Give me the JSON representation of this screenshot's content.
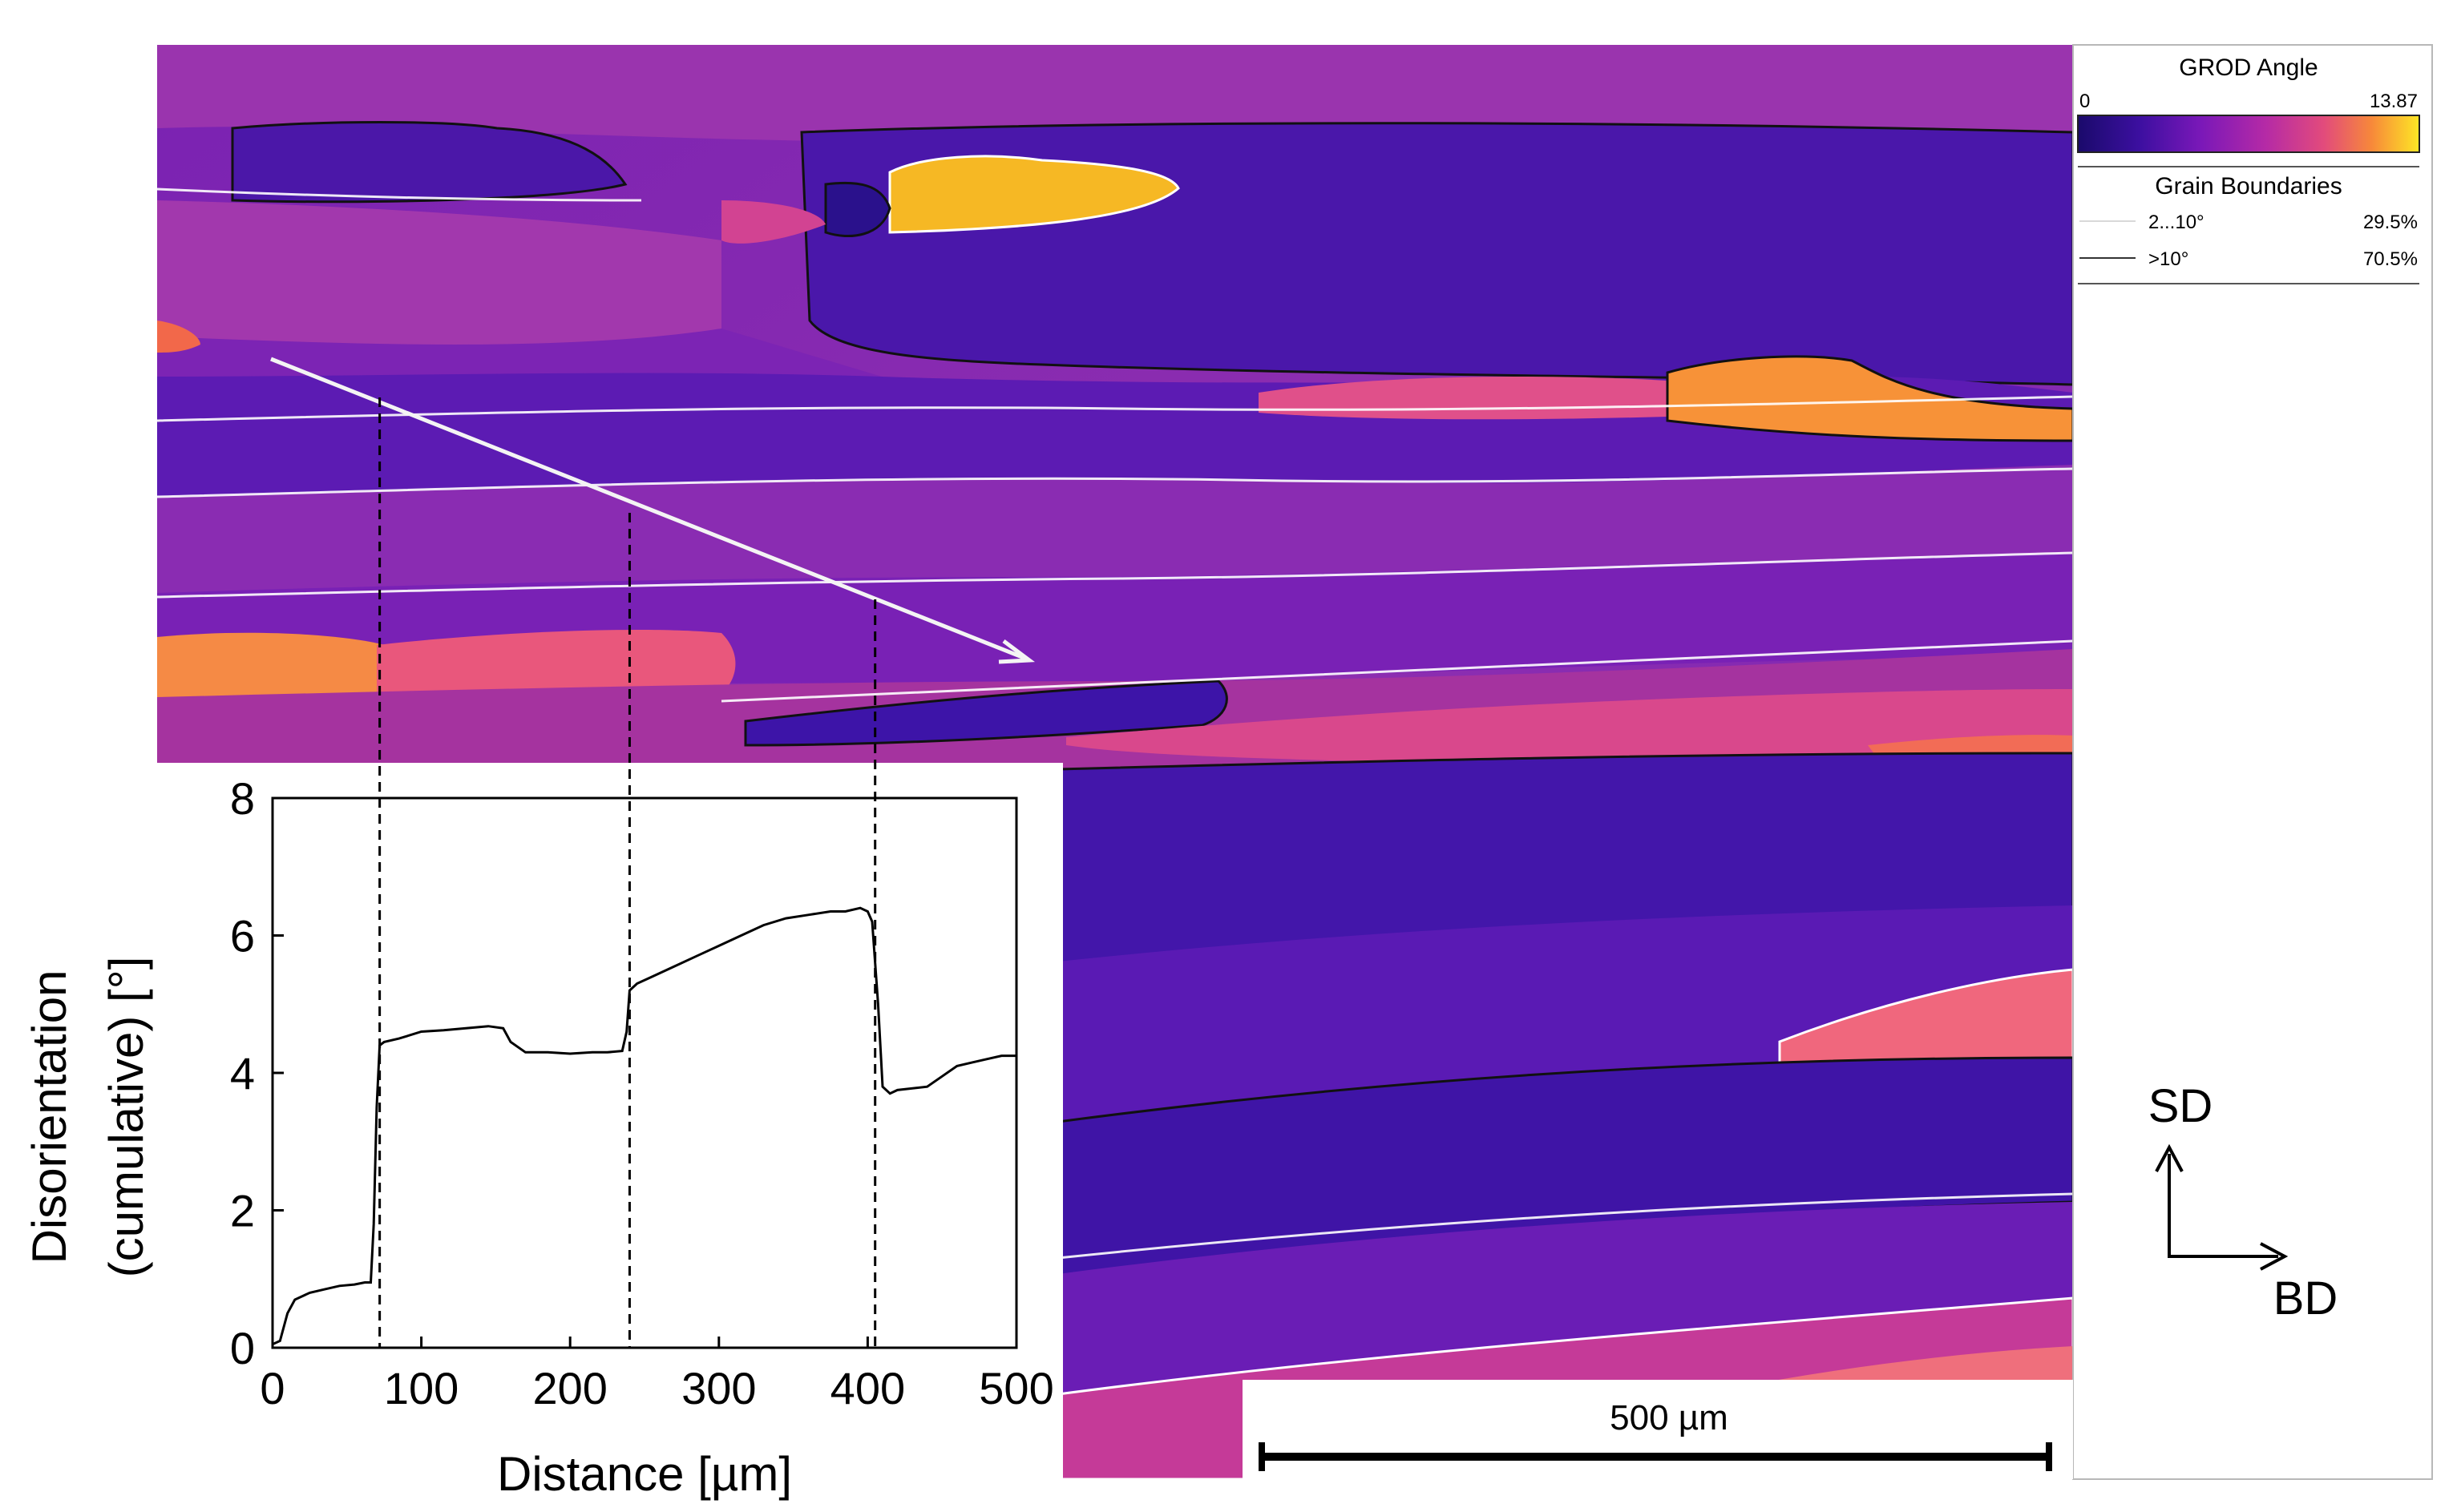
{
  "legend": {
    "grod_title": "GROD Angle",
    "grod_min": "0",
    "grod_max": "13.87",
    "gb_title": "Grain Boundaries",
    "gb_low_label": "2...10°",
    "gb_low_value": "29.5%",
    "gb_high_label": ">10°",
    "gb_high_value": "70.5%",
    "gradient": [
      "#1a0a6b",
      "#3c0fa0",
      "#7a18b8",
      "#b52aa6",
      "#e24b7c",
      "#f7883a",
      "#fde725"
    ]
  },
  "directions": {
    "sd": "SD",
    "bd": "BD"
  },
  "scale_bar": {
    "label": "500 µm",
    "value_um": 500
  },
  "map_colors": {
    "background": "#8a2ab2",
    "deep_blue": "#3d14a8",
    "mid_violet": "#6a1fb6",
    "pink": "#e24f86",
    "orange": "#f78a3e",
    "yellow": "#fbd21e"
  },
  "chart_data": {
    "type": "line",
    "xlabel": "Distance [µm]",
    "ylabel_line1": "Disorientation",
    "ylabel_line2": "(cumulative) [°]",
    "xlim": [
      0,
      500
    ],
    "ylim": [
      0,
      8
    ],
    "xticks": [
      0,
      100,
      200,
      300,
      400,
      500
    ],
    "yticks": [
      0,
      2,
      4,
      6,
      8
    ],
    "markers_x": [
      72,
      240,
      405
    ],
    "series": [
      {
        "x": [
          0,
          5,
          10,
          15,
          25,
          35,
          45,
          55,
          62,
          66,
          68,
          70,
          72,
          75,
          85,
          100,
          115,
          130,
          145,
          155,
          160,
          170,
          185,
          200,
          215,
          225,
          235,
          238,
          240,
          245,
          255,
          270,
          285,
          300,
          315,
          330,
          345,
          360,
          375,
          385,
          395,
          400,
          403,
          405,
          407,
          410,
          415,
          420,
          440,
          450,
          460,
          470,
          480,
          490,
          500
        ],
        "y": [
          0.05,
          0.1,
          0.5,
          0.7,
          0.8,
          0.85,
          0.9,
          0.92,
          0.95,
          0.95,
          1.8,
          3.5,
          4.4,
          4.45,
          4.5,
          4.6,
          4.62,
          4.65,
          4.68,
          4.65,
          4.45,
          4.3,
          4.3,
          4.28,
          4.3,
          4.3,
          4.32,
          4.6,
          5.2,
          5.3,
          5.4,
          5.55,
          5.7,
          5.85,
          6.0,
          6.15,
          6.25,
          6.3,
          6.35,
          6.35,
          6.4,
          6.35,
          6.2,
          5.6,
          5.0,
          3.8,
          3.7,
          3.75,
          3.8,
          3.95,
          4.1,
          4.15,
          4.2,
          4.25,
          4.25
        ]
      }
    ]
  }
}
